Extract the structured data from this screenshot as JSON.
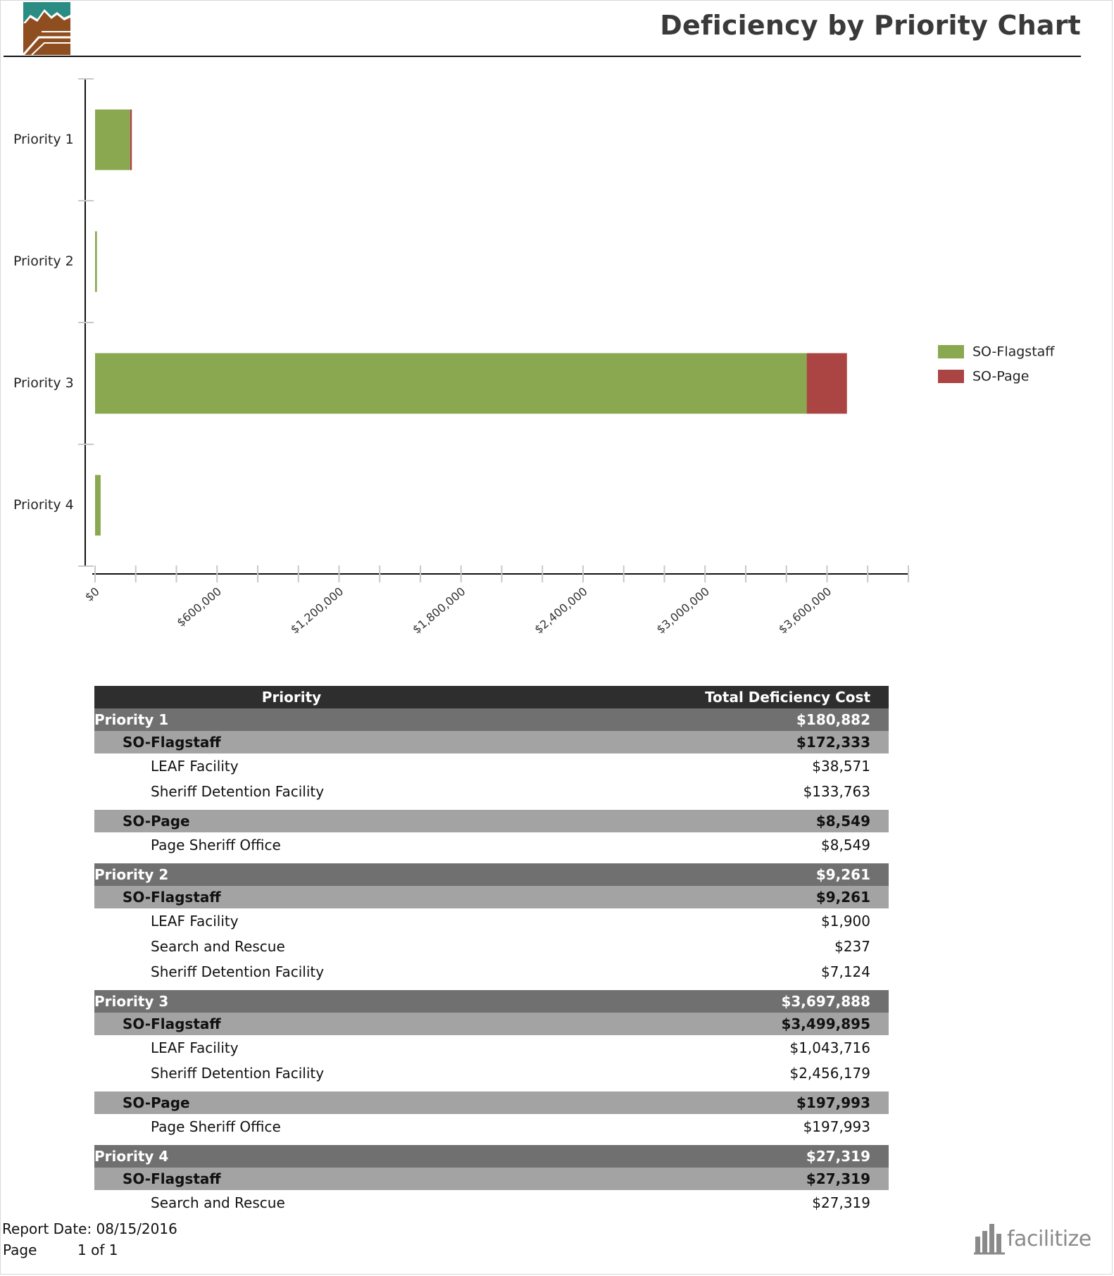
{
  "header": {
    "title": "Deficiency by Priority Chart"
  },
  "colors": {
    "so_flagstaff": "#8aa84f",
    "so_page": "#aa4543",
    "header_bg": "#2e2e2e",
    "priority_bg": "#707070",
    "group_bg": "#a3a3a3"
  },
  "chart_data": {
    "type": "bar",
    "orientation": "horizontal",
    "stacked": true,
    "categories": [
      "Priority 1",
      "Priority 2",
      "Priority 3",
      "Priority 4"
    ],
    "series": [
      {
        "name": "SO-Flagstaff",
        "color": "#8aa84f",
        "values": [
          172333,
          9261,
          3499895,
          27319
        ]
      },
      {
        "name": "SO-Page",
        "color": "#aa4543",
        "values": [
          8549,
          0,
          197993,
          0
        ]
      }
    ],
    "xlim": [
      0,
      4000000
    ],
    "x_tick_labels": [
      "$0",
      "$600,000",
      "$1,200,000",
      "$1,800,000",
      "$2,400,000",
      "$3,000,000",
      "$3,600,000"
    ],
    "x_tick_values": [
      0,
      600000,
      1200000,
      1800000,
      2400000,
      3000000,
      3600000
    ],
    "minor_tick_step": 200000,
    "legend_position": "right",
    "grid": false
  },
  "table": {
    "headers": {
      "priority": "Priority",
      "cost": "Total Deficiency Cost"
    },
    "priorities": [
      {
        "name": "Priority 1",
        "total": "$180,882",
        "groups": [
          {
            "name": "SO-Flagstaff",
            "total": "$172,333",
            "facilities": [
              {
                "name": "LEAF Facility",
                "cost": "$38,571"
              },
              {
                "name": "Sheriff Detention Facility",
                "cost": "$133,763"
              }
            ]
          },
          {
            "name": "SO-Page",
            "total": "$8,549",
            "facilities": [
              {
                "name": "Page Sheriff Office",
                "cost": "$8,549"
              }
            ]
          }
        ]
      },
      {
        "name": "Priority 2",
        "total": "$9,261",
        "groups": [
          {
            "name": "SO-Flagstaff",
            "total": "$9,261",
            "facilities": [
              {
                "name": "LEAF Facility",
                "cost": "$1,900"
              },
              {
                "name": "Search and Rescue",
                "cost": "$237"
              },
              {
                "name": "Sheriff Detention Facility",
                "cost": "$7,124"
              }
            ]
          }
        ]
      },
      {
        "name": "Priority 3",
        "total": "$3,697,888",
        "groups": [
          {
            "name": "SO-Flagstaff",
            "total": "$3,499,895",
            "facilities": [
              {
                "name": "LEAF Facility",
                "cost": "$1,043,716"
              },
              {
                "name": "Sheriff Detention Facility",
                "cost": "$2,456,179"
              }
            ]
          },
          {
            "name": "SO-Page",
            "total": "$197,993",
            "facilities": [
              {
                "name": "Page Sheriff Office",
                "cost": "$197,993"
              }
            ]
          }
        ]
      },
      {
        "name": "Priority 4",
        "total": "$27,319",
        "groups": [
          {
            "name": "SO-Flagstaff",
            "total": "$27,319",
            "facilities": [
              {
                "name": "Search and Rescue",
                "cost": "$27,319"
              }
            ]
          }
        ]
      }
    ]
  },
  "footer": {
    "report_date": "Report Date: 08/15/2016",
    "page_label": "Page",
    "page_value": "1 of 1",
    "brand": "facilitize"
  }
}
